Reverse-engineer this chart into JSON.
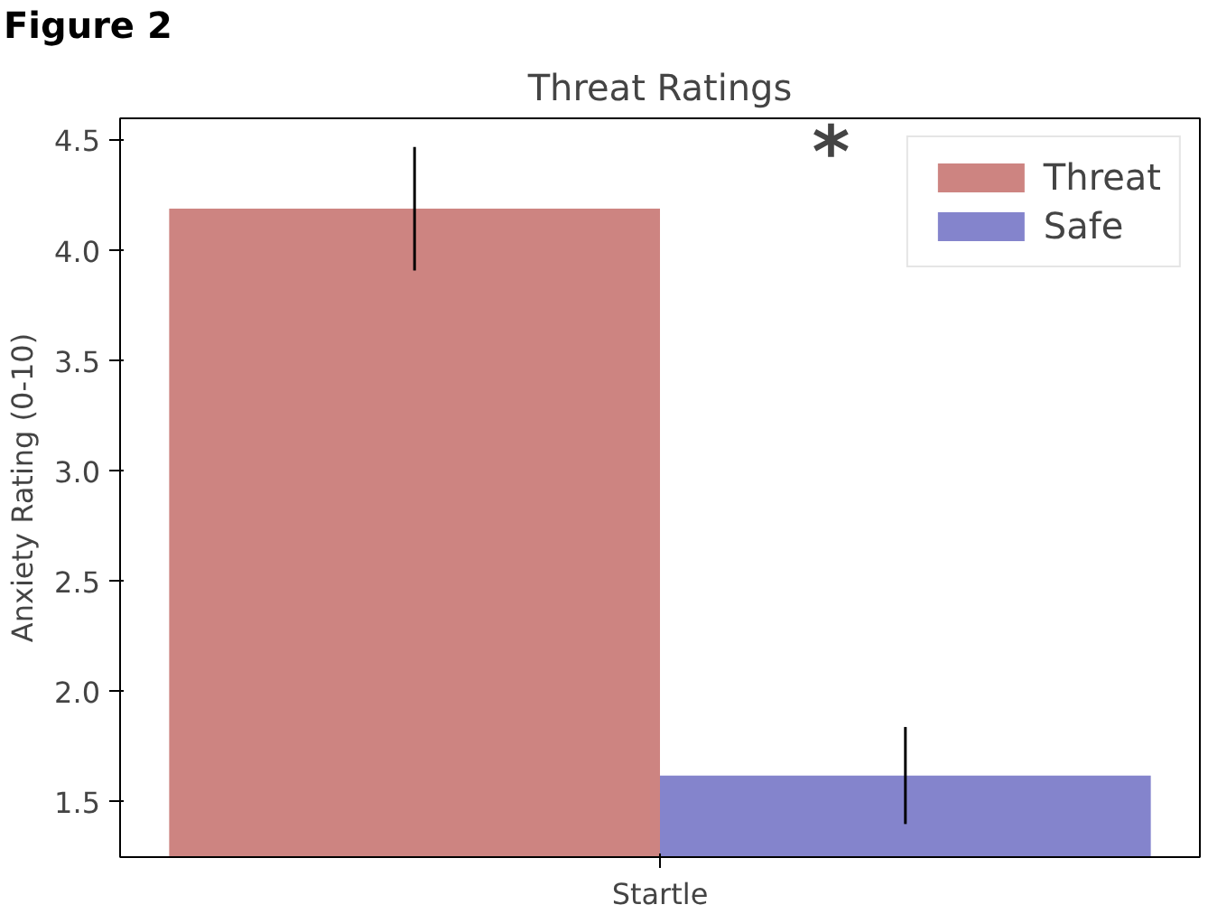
{
  "chart_data": {
    "type": "bar",
    "title": "Threat Ratings",
    "ylabel": "Anxiety Rating (0-10)",
    "categories": [
      "Startle"
    ],
    "series": [
      {
        "name": "Threat",
        "color": "#cd8481",
        "values": [
          4.19
        ],
        "errors": [
          [
            3.91,
            4.47
          ]
        ]
      },
      {
        "name": "Safe",
        "color": "#8484cc",
        "values": [
          1.62
        ],
        "errors": [
          [
            1.4,
            1.84
          ]
        ]
      }
    ],
    "ylim": [
      1.25,
      4.6
    ],
    "yticks": [
      1.5,
      {
        "value": 2,
        "label": "2.0"
      },
      2.5,
      {
        "value": 3,
        "label": "3.0"
      },
      3.5,
      {
        "value": 4,
        "label": "4.0"
      },
      4.5
    ],
    "grid": false,
    "legend": "top right",
    "annotations": [
      "Figure 2",
      "*"
    ]
  }
}
